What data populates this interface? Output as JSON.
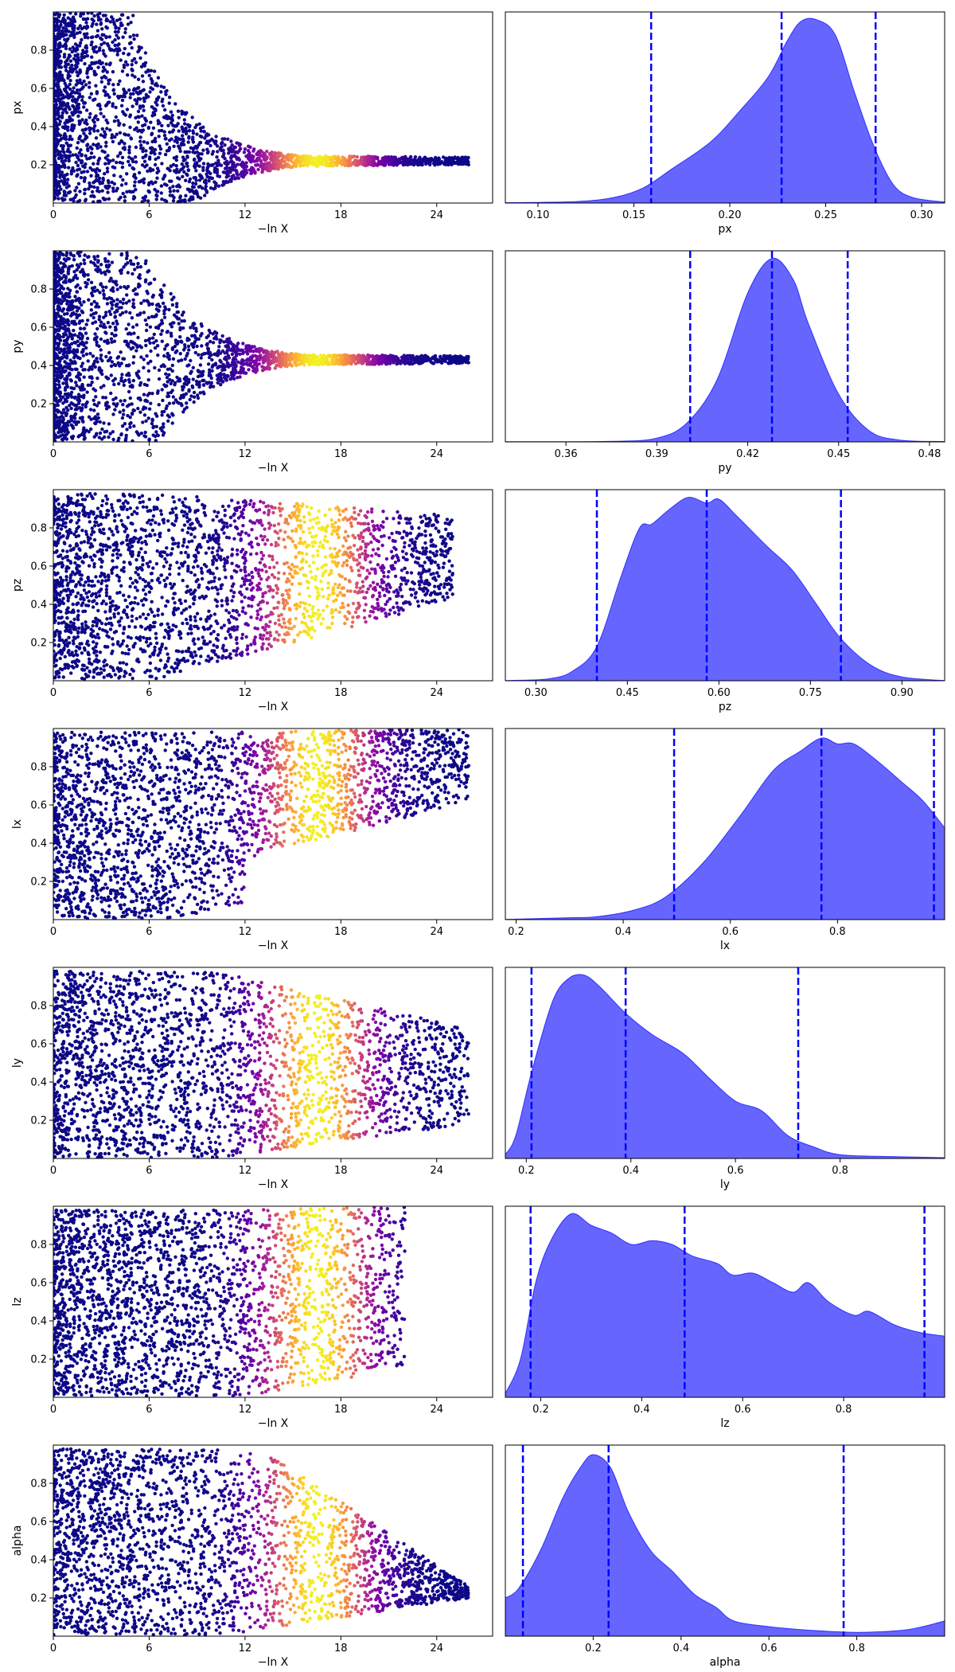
{
  "chart_data": [
    {
      "type": "scatter",
      "xlabel": "−ln X",
      "ylabel": "px",
      "xlim": [
        0,
        27.5
      ],
      "ylim": [
        0,
        1
      ],
      "x_ticks": [
        0,
        6,
        12,
        18,
        24
      ],
      "y_ticks": [
        0.2,
        0.4,
        0.6,
        0.8
      ],
      "colormap": "plasma",
      "converged": {
        "value": 0.22,
        "end": 26
      },
      "converge_start": 5,
      "bright_center": 16.5,
      "bright_width": 3.3,
      "left_bias": 2.2,
      "upper_edge": 0.98
    },
    {
      "type": "area",
      "xlabel": "px",
      "xlim": [
        0.083,
        0.312
      ],
      "x_ticks": [
        0.1,
        0.15,
        0.2,
        0.25,
        0.3
      ],
      "x_tick_labels": [
        "0.10",
        "0.15",
        "0.20",
        "0.25",
        "0.30"
      ],
      "color": "#0000ff",
      "quantile_lines": [
        0.159,
        0.227,
        0.276
      ],
      "density": [
        [
          0.083,
          0.002
        ],
        [
          0.12,
          0.008
        ],
        [
          0.14,
          0.03
        ],
        [
          0.155,
          0.08
        ],
        [
          0.17,
          0.18
        ],
        [
          0.19,
          0.32
        ],
        [
          0.205,
          0.48
        ],
        [
          0.22,
          0.66
        ],
        [
          0.23,
          0.85
        ],
        [
          0.237,
          0.95
        ],
        [
          0.245,
          0.96
        ],
        [
          0.255,
          0.88
        ],
        [
          0.265,
          0.58
        ],
        [
          0.275,
          0.3
        ],
        [
          0.285,
          0.1
        ],
        [
          0.295,
          0.03
        ],
        [
          0.312,
          0.005
        ]
      ]
    },
    {
      "type": "scatter",
      "xlabel": "−ln X",
      "ylabel": "py",
      "xlim": [
        0,
        27.5
      ],
      "ylim": [
        0,
        1
      ],
      "x_ticks": [
        0,
        6,
        12,
        18,
        24
      ],
      "y_ticks": [
        0.2,
        0.4,
        0.6,
        0.8
      ],
      "colormap": "plasma",
      "converged": {
        "value": 0.43,
        "end": 26
      },
      "converge_start": 5,
      "bright_center": 16.5,
      "bright_width": 3.3,
      "left_bias": 2.2,
      "upper_edge": 0.98
    },
    {
      "type": "area",
      "xlabel": "py",
      "xlim": [
        0.34,
        0.485
      ],
      "x_ticks": [
        0.36,
        0.39,
        0.42,
        0.45,
        0.48
      ],
      "x_tick_labels": [
        "0.36",
        "0.39",
        "0.42",
        "0.45",
        "0.48"
      ],
      "color": "#0000ff",
      "quantile_lines": [
        0.401,
        0.428,
        0.453
      ],
      "density": [
        [
          0.34,
          0.001
        ],
        [
          0.375,
          0.003
        ],
        [
          0.39,
          0.02
        ],
        [
          0.4,
          0.1
        ],
        [
          0.41,
          0.33
        ],
        [
          0.42,
          0.78
        ],
        [
          0.428,
          0.96
        ],
        [
          0.435,
          0.85
        ],
        [
          0.44,
          0.62
        ],
        [
          0.45,
          0.25
        ],
        [
          0.46,
          0.06
        ],
        [
          0.47,
          0.01
        ],
        [
          0.485,
          0.002
        ]
      ]
    },
    {
      "type": "scatter",
      "xlabel": "−ln X",
      "ylabel": "pz",
      "xlim": [
        0,
        27.5
      ],
      "ylim": [
        0,
        1
      ],
      "x_ticks": [
        0,
        6,
        12,
        18,
        24
      ],
      "y_ticks": [
        0.2,
        0.4,
        0.6,
        0.8
      ],
      "colormap": "plasma",
      "converged": {
        "low": 0.42,
        "high": 0.87,
        "end": 25
      },
      "converge_start": 6,
      "bright_center": 16.5,
      "bright_width": 3.3,
      "left_bias": 1.4,
      "upper_edge": 0.98
    },
    {
      "type": "area",
      "xlabel": "pz",
      "xlim": [
        0.25,
        0.97
      ],
      "x_ticks": [
        0.3,
        0.45,
        0.6,
        0.75,
        0.9
      ],
      "x_tick_labels": [
        "0.30",
        "0.45",
        "0.60",
        "0.75",
        "0.90"
      ],
      "color": "#0000ff",
      "quantile_lines": [
        0.4,
        0.58,
        0.8
      ],
      "density": [
        [
          0.25,
          0.001
        ],
        [
          0.32,
          0.01
        ],
        [
          0.36,
          0.05
        ],
        [
          0.4,
          0.18
        ],
        [
          0.44,
          0.55
        ],
        [
          0.47,
          0.8
        ],
        [
          0.49,
          0.82
        ],
        [
          0.52,
          0.9
        ],
        [
          0.55,
          0.96
        ],
        [
          0.58,
          0.93
        ],
        [
          0.6,
          0.95
        ],
        [
          0.63,
          0.86
        ],
        [
          0.68,
          0.7
        ],
        [
          0.72,
          0.58
        ],
        [
          0.76,
          0.4
        ],
        [
          0.8,
          0.22
        ],
        [
          0.85,
          0.08
        ],
        [
          0.9,
          0.02
        ],
        [
          0.97,
          0.001
        ]
      ]
    },
    {
      "type": "scatter",
      "xlabel": "−ln X",
      "ylabel": "lx",
      "xlim": [
        0,
        27.5
      ],
      "ylim": [
        0,
        1
      ],
      "x_ticks": [
        0,
        6,
        12,
        18,
        24
      ],
      "y_ticks": [
        0.2,
        0.4,
        0.6,
        0.8
      ],
      "colormap": "plasma",
      "converged": {
        "low": 0.32,
        "high": 1.0,
        "lowend": 0.62,
        "end": 26
      },
      "converge_start": 7,
      "bright_center": 16.5,
      "bright_width": 3.3,
      "left_bias": 1.4,
      "upper_edge": 0.98
    },
    {
      "type": "area",
      "xlabel": "lx",
      "xlim": [
        0.18,
        1.0
      ],
      "x_ticks": [
        0.2,
        0.4,
        0.6,
        0.8
      ],
      "x_tick_labels": [
        "0.2",
        "0.4",
        "0.6",
        "0.8"
      ],
      "color": "#0000ff",
      "quantile_lines": [
        0.495,
        0.77,
        0.98
      ],
      "density": [
        [
          0.18,
          0.001
        ],
        [
          0.3,
          0.01
        ],
        [
          0.35,
          0.015
        ],
        [
          0.42,
          0.05
        ],
        [
          0.48,
          0.12
        ],
        [
          0.55,
          0.3
        ],
        [
          0.62,
          0.55
        ],
        [
          0.68,
          0.78
        ],
        [
          0.73,
          0.88
        ],
        [
          0.77,
          0.95
        ],
        [
          0.8,
          0.92
        ],
        [
          0.83,
          0.92
        ],
        [
          0.87,
          0.84
        ],
        [
          0.92,
          0.72
        ],
        [
          0.96,
          0.62
        ],
        [
          1.0,
          0.48
        ]
      ]
    },
    {
      "type": "scatter",
      "xlabel": "−ln X",
      "ylabel": "ly",
      "xlim": [
        0,
        27.5
      ],
      "ylim": [
        0,
        1
      ],
      "x_ticks": [
        0,
        6,
        12,
        18,
        24
      ],
      "y_ticks": [
        0.2,
        0.4,
        0.6,
        0.8
      ],
      "colormap": "plasma",
      "converged": {
        "low": 0.18,
        "high": 0.68,
        "end": 26
      },
      "converge_start": 10,
      "bright_center": 16.5,
      "bright_width": 3.3,
      "left_bias": 1.4,
      "upper_edge": 0.98
    },
    {
      "type": "area",
      "xlabel": "ly",
      "xlim": [
        0.16,
        1.0
      ],
      "x_ticks": [
        0.2,
        0.4,
        0.6,
        0.8
      ],
      "x_tick_labels": [
        "0.2",
        "0.4",
        "0.6",
        "0.8"
      ],
      "color": "#0000ff",
      "quantile_lines": [
        0.21,
        0.39,
        0.72
      ],
      "density": [
        [
          0.16,
          0.02
        ],
        [
          0.18,
          0.12
        ],
        [
          0.21,
          0.45
        ],
        [
          0.25,
          0.82
        ],
        [
          0.28,
          0.94
        ],
        [
          0.31,
          0.96
        ],
        [
          0.34,
          0.9
        ],
        [
          0.39,
          0.76
        ],
        [
          0.44,
          0.65
        ],
        [
          0.5,
          0.55
        ],
        [
          0.55,
          0.42
        ],
        [
          0.6,
          0.3
        ],
        [
          0.65,
          0.25
        ],
        [
          0.7,
          0.12
        ],
        [
          0.75,
          0.06
        ],
        [
          0.8,
          0.02
        ],
        [
          0.9,
          0.01
        ],
        [
          1.0,
          0.004
        ]
      ]
    },
    {
      "type": "scatter",
      "xlabel": "−ln X",
      "ylabel": "lz",
      "xlim": [
        0,
        27.5
      ],
      "ylim": [
        0,
        1
      ],
      "x_ticks": [
        0,
        6,
        12,
        18,
        24
      ],
      "y_ticks": [
        0.2,
        0.4,
        0.6,
        0.8
      ],
      "colormap": "plasma",
      "converged": {
        "low": 0.15,
        "high": 1.0,
        "end": 22
      },
      "converge_start": 12,
      "bright_center": 16.5,
      "bright_width": 3.3,
      "left_bias": 1.4,
      "upper_edge": 0.98
    },
    {
      "type": "area",
      "xlabel": "lz",
      "xlim": [
        0.13,
        1.0
      ],
      "x_ticks": [
        0.2,
        0.4,
        0.6,
        0.8
      ],
      "x_tick_labels": [
        "0.2",
        "0.4",
        "0.6",
        "0.8"
      ],
      "color": "#0000ff",
      "quantile_lines": [
        0.18,
        0.485,
        0.96
      ],
      "density": [
        [
          0.13,
          0.02
        ],
        [
          0.16,
          0.2
        ],
        [
          0.19,
          0.6
        ],
        [
          0.22,
          0.82
        ],
        [
          0.26,
          0.96
        ],
        [
          0.3,
          0.9
        ],
        [
          0.34,
          0.86
        ],
        [
          0.38,
          0.8
        ],
        [
          0.42,
          0.82
        ],
        [
          0.46,
          0.8
        ],
        [
          0.5,
          0.74
        ],
        [
          0.55,
          0.7
        ],
        [
          0.58,
          0.64
        ],
        [
          0.62,
          0.65
        ],
        [
          0.66,
          0.6
        ],
        [
          0.7,
          0.55
        ],
        [
          0.73,
          0.6
        ],
        [
          0.77,
          0.5
        ],
        [
          0.82,
          0.43
        ],
        [
          0.85,
          0.45
        ],
        [
          0.9,
          0.38
        ],
        [
          0.95,
          0.34
        ],
        [
          1.0,
          0.32
        ]
      ]
    },
    {
      "type": "scatter",
      "xlabel": "−ln X",
      "ylabel": "alpha",
      "xlim": [
        0,
        27.5
      ],
      "ylim": [
        0,
        1
      ],
      "x_ticks": [
        0,
        6,
        12,
        18,
        24
      ],
      "y_ticks": [
        0.2,
        0.4,
        0.6,
        0.8
      ],
      "colormap": "plasma",
      "converged": {
        "low": 0.02,
        "high": 0.98,
        "lowend": 0.2,
        "highend": 0.26,
        "end": 26
      },
      "converge_start": 13,
      "bright_center": 16.5,
      "bright_width": 3.3,
      "left_bias": 1.4,
      "upper_edge": 0.98
    },
    {
      "type": "area",
      "xlabel": "alpha",
      "xlim": [
        0.0,
        1.0
      ],
      "x_ticks": [
        0.2,
        0.4,
        0.6,
        0.8
      ],
      "x_tick_labels": [
        "0.2",
        "0.4",
        "0.6",
        "0.8"
      ],
      "color": "#0000ff",
      "quantile_lines": [
        0.04,
        0.235,
        0.77
      ],
      "density": [
        [
          0.0,
          0.2
        ],
        [
          0.03,
          0.25
        ],
        [
          0.08,
          0.45
        ],
        [
          0.13,
          0.72
        ],
        [
          0.17,
          0.88
        ],
        [
          0.2,
          0.95
        ],
        [
          0.24,
          0.88
        ],
        [
          0.28,
          0.65
        ],
        [
          0.33,
          0.45
        ],
        [
          0.38,
          0.34
        ],
        [
          0.43,
          0.22
        ],
        [
          0.48,
          0.15
        ],
        [
          0.52,
          0.08
        ],
        [
          0.6,
          0.05
        ],
        [
          0.7,
          0.03
        ],
        [
          0.8,
          0.02
        ],
        [
          0.9,
          0.03
        ],
        [
          0.95,
          0.05
        ],
        [
          1.0,
          0.08
        ]
      ]
    }
  ]
}
